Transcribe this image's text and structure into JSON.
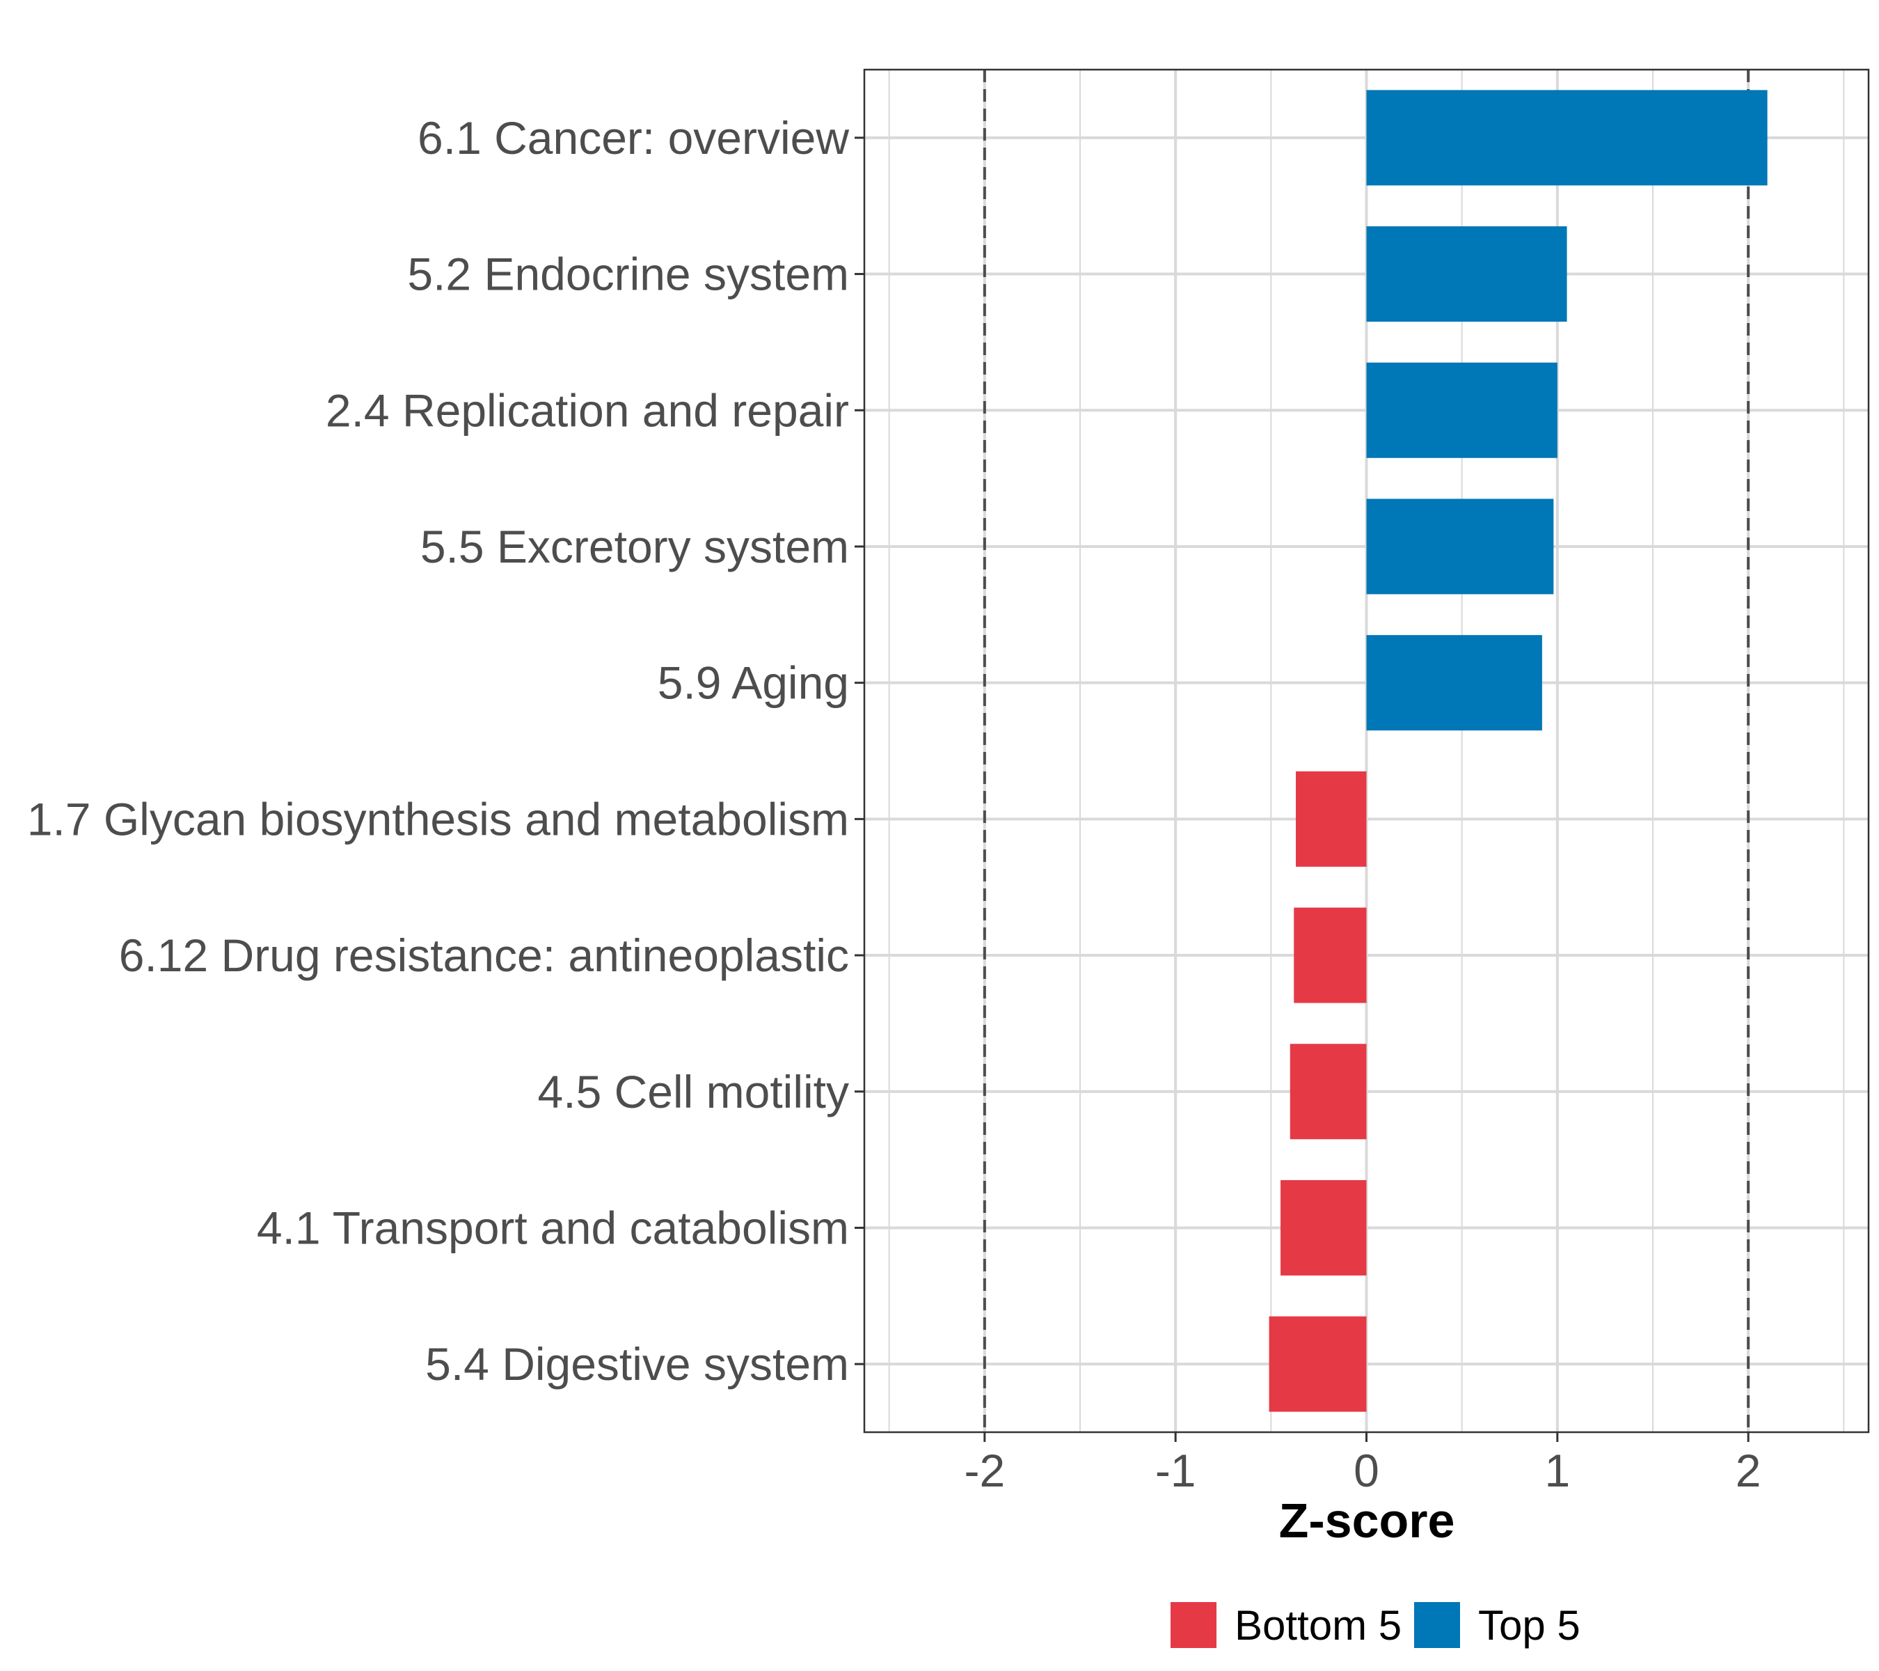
{
  "chart_data": {
    "type": "bar",
    "orientation": "horizontal",
    "categories": [
      "6.1 Cancer: overview",
      "5.2 Endocrine system",
      "2.4 Replication and repair",
      "5.5 Excretory system",
      "5.9 Aging",
      "1.7 Glycan biosynthesis and metabolism",
      "6.12 Drug resistance: antineoplastic",
      "4.5 Cell motility",
      "4.1 Transport and catabolism",
      "5.4 Digestive system"
    ],
    "values": [
      2.1,
      1.05,
      1.0,
      0.98,
      0.92,
      -0.37,
      -0.38,
      -0.4,
      -0.45,
      -0.51
    ],
    "groups": [
      "Top 5",
      "Top 5",
      "Top 5",
      "Top 5",
      "Top 5",
      "Bottom 5",
      "Bottom 5",
      "Bottom 5",
      "Bottom 5",
      "Bottom 5"
    ],
    "xlabel": "Z-score",
    "ylabel": "",
    "xlim": [
      -2.63,
      2.63
    ],
    "xticks": [
      -2,
      -1,
      0,
      1,
      2
    ],
    "xtick_labels": [
      "-2",
      "-1",
      "0",
      "1",
      "2"
    ],
    "threshold_lines": [
      -2,
      2
    ],
    "grid": true,
    "legend": {
      "position": "bottom",
      "items": [
        {
          "label": "Bottom 5",
          "color": "#e63946"
        },
        {
          "label": "Top 5",
          "color": "#0077b6"
        }
      ]
    }
  },
  "colors": {
    "top": "#0077b6",
    "bottom": "#e63946",
    "grid": "#d9d9d9",
    "threshold": "#4d4d4d"
  }
}
